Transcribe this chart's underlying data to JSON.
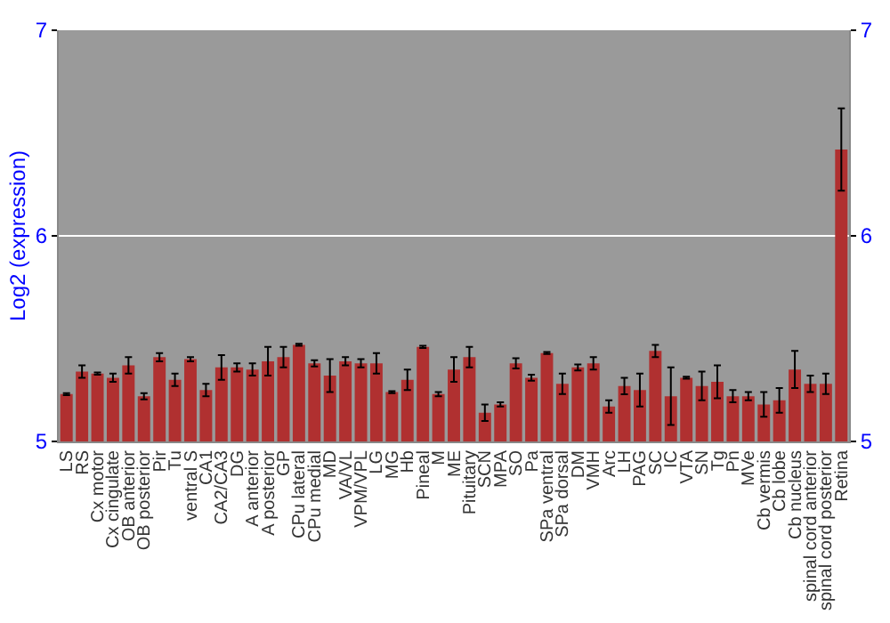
{
  "chart_data": {
    "type": "bar",
    "ylabel": "Log2 (expression)",
    "categories": [
      "LS",
      "RS",
      "Cx motor",
      "Cx cingulate",
      "OB anterior",
      "OB posterior",
      "Pir",
      "Tu",
      "ventral S",
      "CA1",
      "CA2/CA3",
      "DG",
      "A anterior",
      "A posterior",
      "GP",
      "CPu lateral",
      "CPu medial",
      "MD",
      "VA/VL",
      "VPM/VPL",
      "LG",
      "MG",
      "Hb",
      "Pineal",
      "M",
      "ME",
      "Pituitary",
      "SCN",
      "MPA",
      "SO",
      "Pa",
      "SPa ventral",
      "SPa dorsal",
      "DM",
      "VMH",
      "Arc",
      "LH",
      "PAG",
      "SC",
      "IC",
      "VTA",
      "SN",
      "Tg",
      "Pn",
      "MVe",
      "Cb vermis",
      "Cb lobe",
      "Cb nucleus",
      "spinal cord anterior",
      "spinal cord posterior",
      "Retina"
    ],
    "values": [
      5.23,
      5.34,
      5.33,
      5.31,
      5.37,
      5.22,
      5.41,
      5.3,
      5.4,
      5.25,
      5.36,
      5.36,
      5.35,
      5.39,
      5.41,
      5.47,
      5.38,
      5.32,
      5.39,
      5.38,
      5.38,
      5.24,
      5.3,
      5.46,
      5.23,
      5.35,
      5.41,
      5.14,
      5.18,
      5.38,
      5.31,
      5.43,
      5.28,
      5.36,
      5.38,
      5.17,
      5.27,
      5.25,
      5.44,
      5.22,
      5.31,
      5.27,
      5.29,
      5.22,
      5.22,
      5.18,
      5.2,
      5.35,
      5.28,
      5.28,
      6.42
    ],
    "errors": [
      0.005,
      0.03,
      0.005,
      0.02,
      0.04,
      0.015,
      0.02,
      0.03,
      0.01,
      0.03,
      0.06,
      0.02,
      0.03,
      0.07,
      0.05,
      0.005,
      0.015,
      0.08,
      0.02,
      0.02,
      0.05,
      0.005,
      0.05,
      0.005,
      0.01,
      0.06,
      0.05,
      0.04,
      0.01,
      0.025,
      0.015,
      0.005,
      0.05,
      0.015,
      0.03,
      0.03,
      0.04,
      0.08,
      0.03,
      0.14,
      0.005,
      0.07,
      0.08,
      0.03,
      0.02,
      0.06,
      0.06,
      0.09,
      0.04,
      0.05,
      0.2
    ],
    "color": "#b03030",
    "ylim": [
      5,
      7
    ],
    "yticks": [
      5,
      6,
      7
    ],
    "y2lim": [
      5,
      7
    ],
    "y2ticks": [
      5,
      6,
      7
    ],
    "grid": "y"
  }
}
